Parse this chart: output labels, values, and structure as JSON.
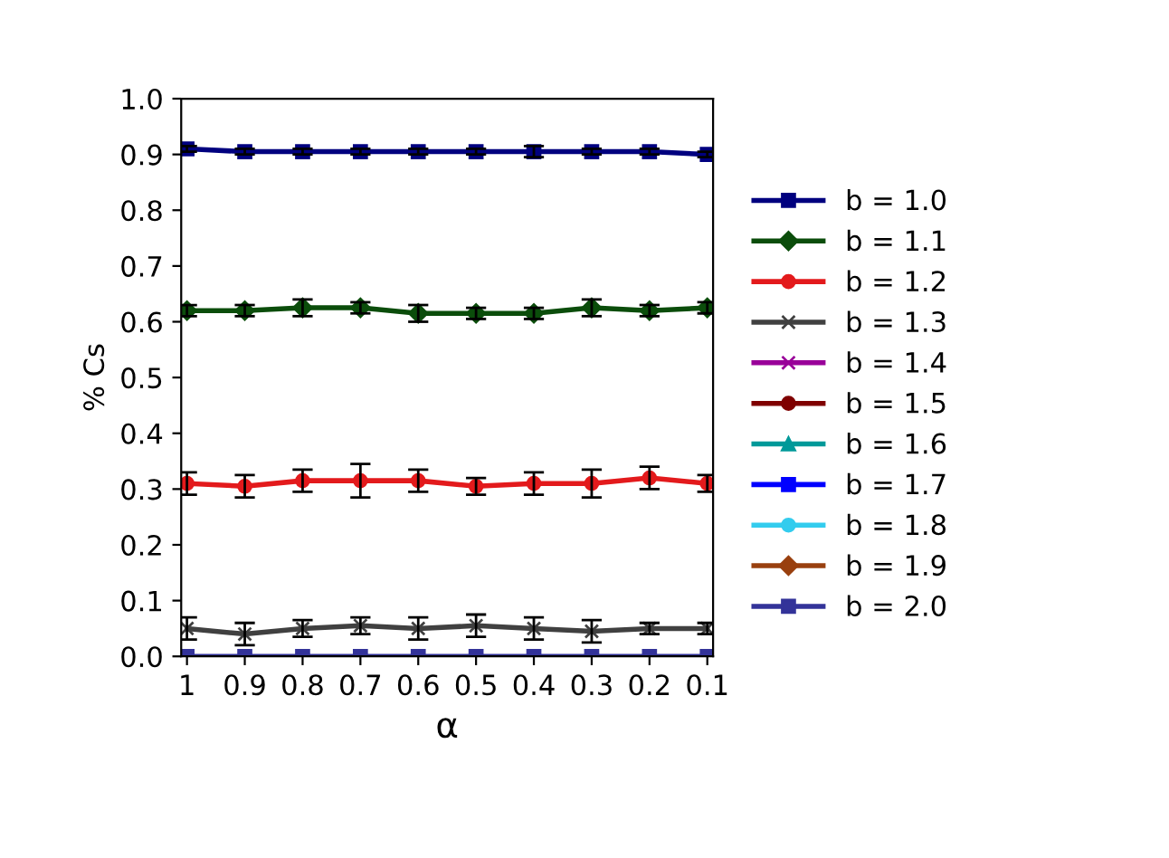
{
  "chart_data": {
    "type": "line",
    "xlabel": "α",
    "ylabel": "% Cs",
    "categories": [
      "1",
      "0.9",
      "0.8",
      "0.7",
      "0.6",
      "0.5",
      "0.4",
      "0.3",
      "0.2",
      "0.1"
    ],
    "ylim": [
      0,
      1.0
    ],
    "yticks": [
      {
        "value": 0,
        "label": "0.0"
      },
      0.1,
      0.2,
      0.3,
      0.4,
      0.5,
      0.6,
      0.7,
      0.8,
      0.9,
      {
        "value": 1.0,
        "label": "1.0"
      }
    ],
    "grid": false,
    "legend": "right",
    "series": [
      {
        "name": "b = 1.0",
        "color": "#00007f",
        "marker": "square",
        "values": [
          0.91,
          0.905,
          0.905,
          0.905,
          0.905,
          0.905,
          0.905,
          0.905,
          0.905,
          0.9
        ],
        "errors": [
          0.005,
          0.005,
          0.005,
          0.005,
          0.005,
          0.005,
          0.01,
          0.005,
          0.005,
          0.005
        ]
      },
      {
        "name": "b = 1.1",
        "color": "#0b4d0b",
        "marker": "diamond",
        "values": [
          0.62,
          0.62,
          0.625,
          0.625,
          0.615,
          0.615,
          0.615,
          0.625,
          0.62,
          0.625
        ],
        "errors": [
          0.01,
          0.01,
          0.015,
          0.01,
          0.015,
          0.01,
          0.01,
          0.015,
          0.01,
          0.01
        ]
      },
      {
        "name": "b = 1.2",
        "color": "#e31a1c",
        "marker": "circle",
        "values": [
          0.31,
          0.305,
          0.315,
          0.315,
          0.315,
          0.305,
          0.31,
          0.31,
          0.32,
          0.31
        ],
        "errors": [
          0.02,
          0.02,
          0.02,
          0.03,
          0.02,
          0.015,
          0.02,
          0.025,
          0.02,
          0.015
        ]
      },
      {
        "name": "b = 1.3",
        "color": "#404040",
        "marker": "cross",
        "values": [
          0.05,
          0.04,
          0.05,
          0.055,
          0.05,
          0.055,
          0.05,
          0.045,
          0.05,
          0.05
        ],
        "errors": [
          0.02,
          0.02,
          0.015,
          0.015,
          0.02,
          0.02,
          0.02,
          0.02,
          0.01,
          0.01
        ]
      },
      {
        "name": "b = 1.4",
        "color": "#990099",
        "marker": "cross",
        "values": [
          null,
          null,
          null,
          null,
          null,
          null,
          null,
          null,
          null,
          null
        ]
      },
      {
        "name": "b = 1.5",
        "color": "#7f0000",
        "marker": "circle",
        "values": [
          null,
          null,
          null,
          null,
          null,
          null,
          null,
          null,
          null,
          null
        ]
      },
      {
        "name": "b = 1.6",
        "color": "#009999",
        "marker": "triangle",
        "values": [
          null,
          null,
          null,
          null,
          null,
          null,
          null,
          null,
          null,
          null
        ]
      },
      {
        "name": "b = 1.7",
        "color": "#0000ff",
        "marker": "square",
        "values": [
          null,
          null,
          null,
          null,
          null,
          null,
          null,
          null,
          null,
          null
        ]
      },
      {
        "name": "b = 1.8",
        "color": "#33ccee",
        "marker": "circle",
        "values": [
          null,
          null,
          null,
          null,
          null,
          null,
          null,
          null,
          null,
          null
        ]
      },
      {
        "name": "b = 1.9",
        "color": "#99400f",
        "marker": "diamond",
        "values": [
          null,
          null,
          null,
          null,
          null,
          null,
          null,
          null,
          null,
          null
        ]
      },
      {
        "name": "b = 2.0",
        "color": "#333399",
        "marker": "square",
        "values": [
          0,
          0,
          0,
          0,
          0,
          0,
          0,
          0,
          0,
          0
        ]
      }
    ]
  }
}
